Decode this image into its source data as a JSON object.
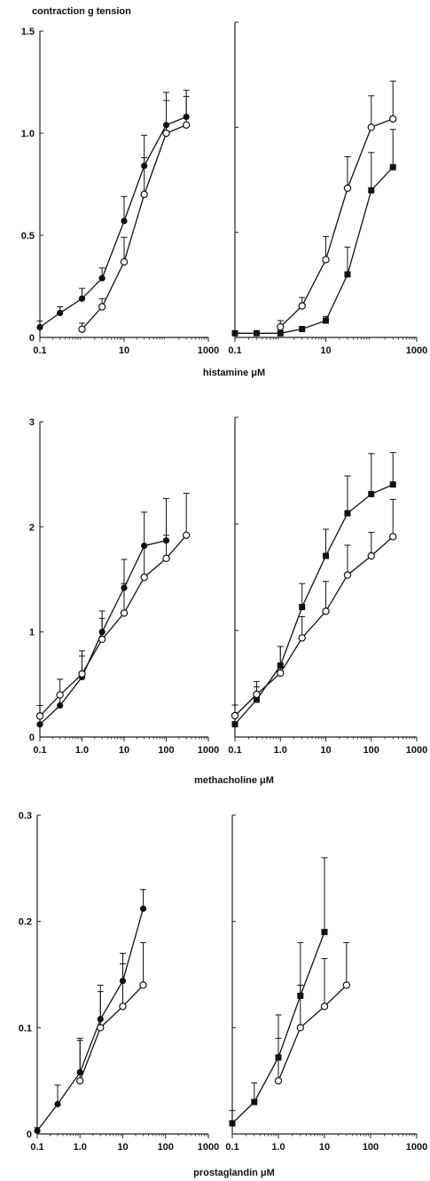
{
  "figure": {
    "ylabel": "contraction g tension"
  },
  "chart_data": [
    {
      "type": "line",
      "xscale": "log",
      "xlim": [
        0.1,
        1000
      ],
      "ylim": [
        0,
        1.5
      ],
      "x_ticks": [
        0.1,
        10,
        1000
      ],
      "x_tick_labels": [
        "0.1",
        "10",
        "1000"
      ],
      "y_ticks": [
        0,
        0.5,
        1.0,
        1.5
      ],
      "y_tick_labels": [
        "0",
        "0.5",
        "1.0",
        "1.5"
      ],
      "series": [
        {
          "marker": "filled-circle",
          "x": [
            0.1,
            0.3,
            1,
            3,
            10,
            30,
            100,
            300
          ],
          "y": [
            0.05,
            0.12,
            0.19,
            0.29,
            0.57,
            0.84,
            1.04,
            1.08
          ],
          "err": [
            0.03,
            0.03,
            0.05,
            0.05,
            0.12,
            0.15,
            0.16,
            0.1
          ]
        },
        {
          "marker": "open-circle",
          "x": [
            1,
            3,
            10,
            30,
            100,
            300
          ],
          "y": [
            0.04,
            0.15,
            0.37,
            0.7,
            1.0,
            1.04
          ],
          "err": [
            0.03,
            0.04,
            0.12,
            0.18,
            0.16,
            0.17
          ]
        }
      ]
    },
    {
      "type": "line",
      "xscale": "log",
      "xlim": [
        0.1,
        1000
      ],
      "ylim": [
        0,
        1.5
      ],
      "x_ticks": [
        0.1,
        10,
        1000
      ],
      "x_tick_labels": [
        "0.1",
        "10",
        "1000"
      ],
      "y_ticks": [
        0,
        0.5,
        1.0,
        1.5
      ],
      "y_tick_labels": [],
      "series": [
        {
          "marker": "filled-square",
          "x": [
            0.1,
            0.3,
            1,
            3,
            10,
            30,
            100,
            300
          ],
          "y": [
            0.02,
            0.02,
            0.02,
            0.04,
            0.08,
            0.3,
            0.7,
            0.81
          ],
          "err": [
            0,
            0,
            0,
            0,
            0.02,
            0.13,
            0.18,
            0.18
          ]
        },
        {
          "marker": "open-circle",
          "x": [
            1,
            3,
            10,
            30,
            100,
            300
          ],
          "y": [
            0.05,
            0.15,
            0.37,
            0.71,
            1.0,
            1.04
          ],
          "err": [
            0.03,
            0.04,
            0.11,
            0.15,
            0.15,
            0.18
          ]
        }
      ]
    },
    {
      "type": "line",
      "xscale": "log",
      "xlim": [
        0.1,
        1000
      ],
      "ylim": [
        0,
        3
      ],
      "x_ticks": [
        0.1,
        1,
        10,
        100,
        1000
      ],
      "x_tick_labels": [
        "0.1",
        "1.0",
        "10",
        "100",
        "1000"
      ],
      "y_ticks": [
        0,
        1,
        2,
        3
      ],
      "y_tick_labels": [
        "0",
        "1",
        "2",
        "3"
      ],
      "xlabel": "methacholine μM",
      "series": [
        {
          "marker": "filled-circle",
          "x": [
            0.1,
            0.3,
            1,
            3,
            10,
            30,
            100
          ],
          "y": [
            0.12,
            0.3,
            0.57,
            1.0,
            1.42,
            1.82,
            1.87
          ],
          "err": [
            0.1,
            0.12,
            0.2,
            0.2,
            0.27,
            0.32,
            0.4
          ]
        },
        {
          "marker": "open-circle",
          "x": [
            0.1,
            0.3,
            1,
            3,
            10,
            30,
            100,
            300
          ],
          "y": [
            0.2,
            0.4,
            0.6,
            0.93,
            1.18,
            1.52,
            1.7,
            1.92
          ],
          "err": [
            0.1,
            0.15,
            0.22,
            0.2,
            0.28,
            0.3,
            0.22,
            0.4
          ]
        }
      ]
    },
    {
      "type": "line",
      "xscale": "log",
      "xlim": [
        0.1,
        1000
      ],
      "ylim": [
        0,
        3
      ],
      "x_ticks": [
        0.1,
        1,
        10,
        100,
        1000
      ],
      "x_tick_labels": [
        "0.1",
        "1.0",
        "10",
        "100",
        "1000"
      ],
      "y_ticks": [
        0,
        1,
        2,
        3
      ],
      "y_tick_labels": [],
      "series": [
        {
          "marker": "filled-square",
          "x": [
            0.1,
            0.3,
            1,
            3,
            10,
            30,
            100,
            300
          ],
          "y": [
            0.12,
            0.35,
            0.67,
            1.22,
            1.7,
            2.1,
            2.28,
            2.37
          ],
          "err": [
            0.1,
            0.12,
            0.18,
            0.22,
            0.25,
            0.35,
            0.38,
            0.3
          ]
        },
        {
          "marker": "open-circle",
          "x": [
            0.1,
            0.3,
            1,
            3,
            10,
            30,
            100,
            300
          ],
          "y": [
            0.2,
            0.4,
            0.6,
            0.93,
            1.18,
            1.52,
            1.7,
            1.88
          ],
          "err": [
            0.1,
            0.12,
            0.25,
            0.2,
            0.28,
            0.28,
            0.22,
            0.35
          ]
        }
      ]
    },
    {
      "type": "line",
      "xscale": "log",
      "xlim": [
        0.1,
        1000
      ],
      "ylim": [
        0,
        0.3
      ],
      "x_ticks": [
        0.1,
        1,
        10,
        100,
        1000
      ],
      "x_tick_labels": [
        "0.1",
        "1.0",
        "10",
        "100",
        "1000"
      ],
      "y_ticks": [
        0,
        0.1,
        0.2,
        0.3
      ],
      "y_tick_labels": [
        "0",
        "0.1",
        "0.2",
        "0.3"
      ],
      "series": [
        {
          "marker": "filled-circle",
          "x": [
            0.1,
            0.3,
            1,
            3,
            10,
            30
          ],
          "y": [
            0.003,
            0.028,
            0.058,
            0.108,
            0.144,
            0.212
          ],
          "err": [
            0.003,
            0.018,
            0.03,
            0.026,
            0.026,
            0.018
          ]
        },
        {
          "marker": "open-circle",
          "x": [
            1,
            3,
            10,
            30
          ],
          "y": [
            0.05,
            0.1,
            0.12,
            0.14
          ],
          "err": [
            0.04,
            0.04,
            0.04,
            0.04
          ]
        }
      ]
    },
    {
      "type": "line",
      "xscale": "log",
      "xlim": [
        0.1,
        1000
      ],
      "ylim": [
        0,
        0.3
      ],
      "x_ticks": [
        0.1,
        1,
        10,
        100,
        1000
      ],
      "x_tick_labels": [
        "0.1",
        "1.0",
        "10",
        "100",
        "1000"
      ],
      "y_ticks": [
        0,
        0.1,
        0.2,
        0.3
      ],
      "y_tick_labels": [],
      "series": [
        {
          "marker": "filled-square",
          "x": [
            0.1,
            0.3,
            1,
            3,
            10
          ],
          "y": [
            0.01,
            0.03,
            0.072,
            0.13,
            0.19
          ],
          "err": [
            0.012,
            0.018,
            0.04,
            0.05,
            0.07
          ]
        },
        {
          "marker": "open-circle",
          "x": [
            1,
            3,
            10,
            30
          ],
          "y": [
            0.05,
            0.1,
            0.12,
            0.14
          ],
          "err": [
            0.04,
            0.04,
            0.045,
            0.04
          ]
        }
      ]
    }
  ],
  "row_labels": {
    "histamine": "histamine μM",
    "prostaglandin": "prostaglandin μM"
  }
}
